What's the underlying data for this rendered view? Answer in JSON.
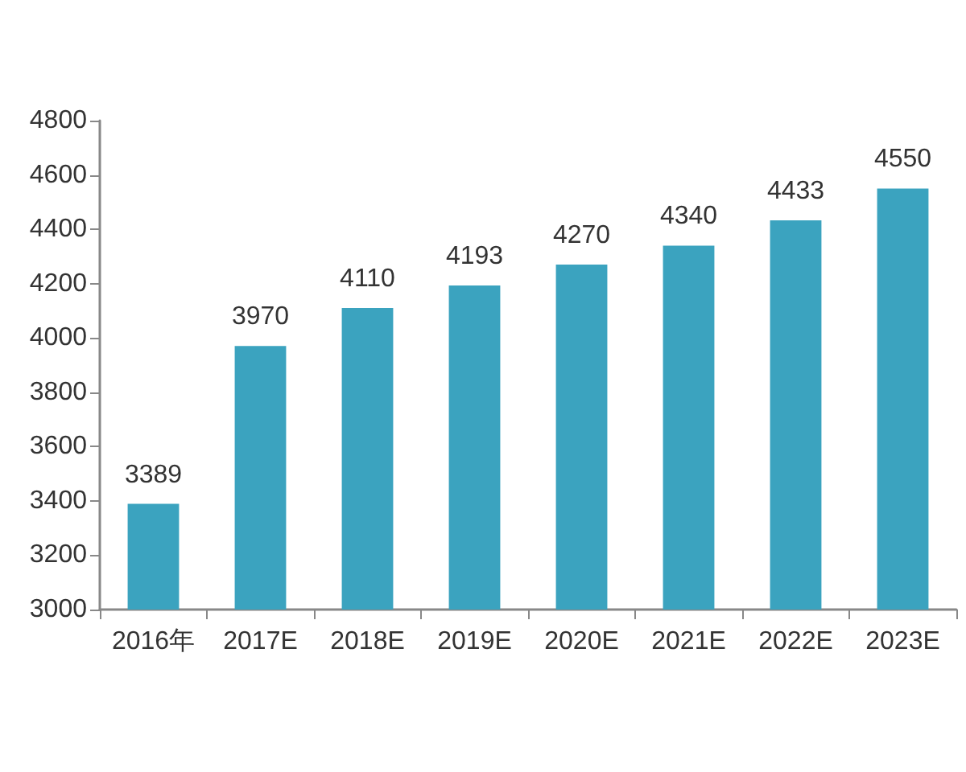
{
  "chart_data": {
    "type": "bar",
    "categories": [
      "2016年",
      "2017E",
      "2018E",
      "2019E",
      "2020E",
      "2021E",
      "2022E",
      "2023E"
    ],
    "values": [
      3389,
      3970,
      4110,
      4193,
      4270,
      4340,
      4433,
      4550
    ],
    "color": "#3ba3bf",
    "ylim": [
      3000,
      4800
    ],
    "yticks": [
      3000,
      3200,
      3400,
      3600,
      3800,
      4000,
      4200,
      4400,
      4600,
      4800
    ],
    "grid": false,
    "data_labels": true
  }
}
